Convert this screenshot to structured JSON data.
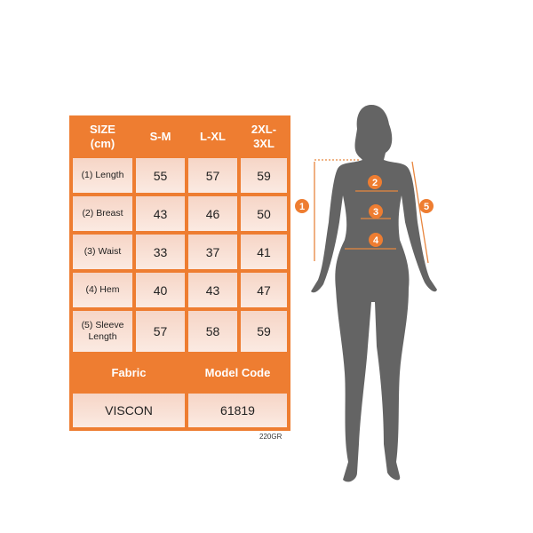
{
  "table": {
    "header": [
      "SIZE\n(cm)",
      "S-M",
      "L-XL",
      "2XL-\n3XL"
    ],
    "rows": [
      {
        "label": "(1) Length",
        "values": [
          "55",
          "57",
          "59"
        ]
      },
      {
        "label": "(2) Breast",
        "values": [
          "43",
          "46",
          "50"
        ]
      },
      {
        "label": "(3) Waist",
        "values": [
          "33",
          "37",
          "41"
        ]
      },
      {
        "label": "(4) Hem",
        "values": [
          "40",
          "43",
          "47"
        ]
      },
      {
        "label": "(5) Sleeve Length",
        "values": [
          "57",
          "58",
          "59"
        ]
      }
    ],
    "fabric_label": "Fabric",
    "model_code_label": "Model Code",
    "fabric_value": "VISCON",
    "model_code_value": "61819"
  },
  "note": "220GR",
  "figure": {
    "markers": [
      "1",
      "2",
      "3",
      "4",
      "5"
    ],
    "accent": "#ee7d31",
    "silhouette": "#646464"
  }
}
